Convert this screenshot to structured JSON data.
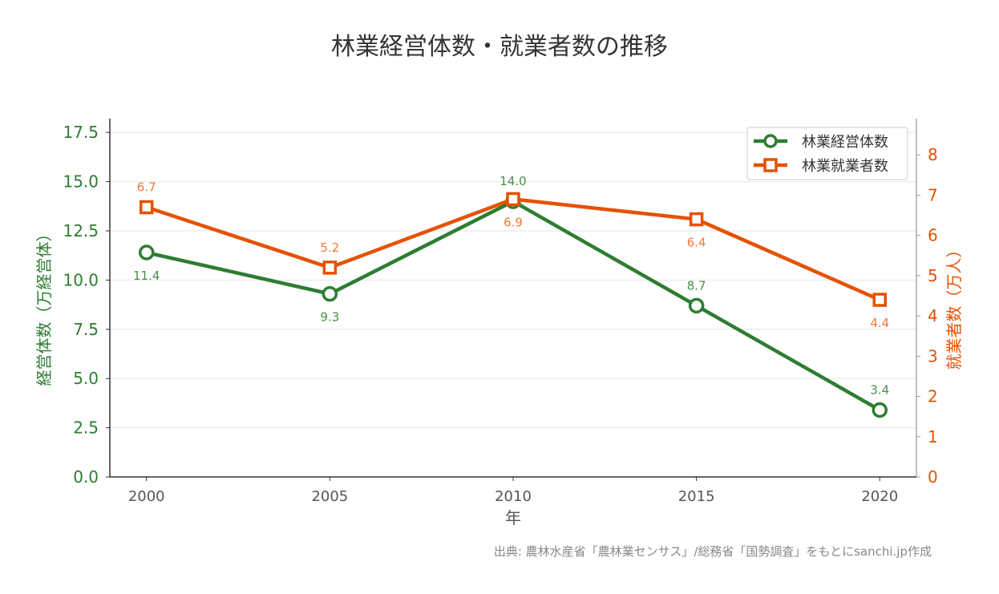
{
  "chart_data": {
    "type": "line",
    "title": "林業経営体数・就業者数の推移",
    "xlabel": "年",
    "ylabel_left": "経営体数（万経営体）",
    "ylabel_right": "就業者数（万人）",
    "x": [
      2000,
      2005,
      2010,
      2015,
      2020
    ],
    "x_ticks": [
      "2000",
      "2005",
      "2010",
      "2015",
      "2020"
    ],
    "xlim": [
      1999,
      2021
    ],
    "ylim_left": [
      0,
      18.2
    ],
    "ylim_right": [
      0,
      8.9
    ],
    "y_ticks_left": [
      "0.0",
      "2.5",
      "5.0",
      "7.5",
      "10.0",
      "12.5",
      "15.0",
      "17.5"
    ],
    "y_ticks_right": [
      "0",
      "1",
      "2",
      "3",
      "4",
      "5",
      "6",
      "7",
      "8"
    ],
    "grid": true,
    "legend_position": "top-right",
    "series": [
      {
        "name": "林業経営体数",
        "axis": "left",
        "color": "#2e7d32",
        "marker": "circle",
        "values": [
          11.4,
          9.3,
          14.0,
          8.7,
          3.4
        ],
        "labels": [
          "11.4",
          "9.3",
          "14.0",
          "8.7",
          "3.4"
        ]
      },
      {
        "name": "林業就業者数",
        "axis": "right",
        "color": "#e65100",
        "marker": "square",
        "values": [
          6.7,
          5.2,
          6.9,
          6.4,
          4.4
        ],
        "labels": [
          "6.7",
          "5.2",
          "6.9",
          "6.4",
          "4.4"
        ]
      }
    ],
    "source": "出典: 農林水産省「農林業センサス」/総務省「国勢調査」をもとにsanchi.jp作成"
  }
}
